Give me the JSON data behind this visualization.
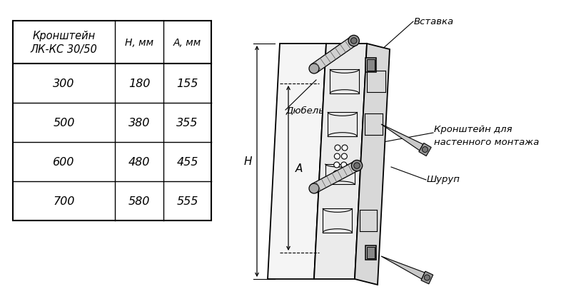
{
  "bg_color": "#ffffff",
  "table_header": [
    "Кронштейн\nЛК-КС 30/50",
    "Н, мм",
    "А, мм"
  ],
  "table_rows": [
    [
      "300",
      "180",
      "155"
    ],
    [
      "500",
      "380",
      "355"
    ],
    [
      "600",
      "480",
      "455"
    ],
    [
      "700",
      "580",
      "555"
    ]
  ],
  "labels": {
    "dyubel": "Дюбель",
    "vstavka": "Вставка",
    "kronshtein": "Кронштейн для\nнастенного монтажа",
    "shurup": "Шуруп",
    "H": "Н",
    "A": "А"
  },
  "line_color": "#000000",
  "text_color": "#000000",
  "table_fontsize": 10.5,
  "label_fontsize": 9.5,
  "dim_fontsize": 11
}
